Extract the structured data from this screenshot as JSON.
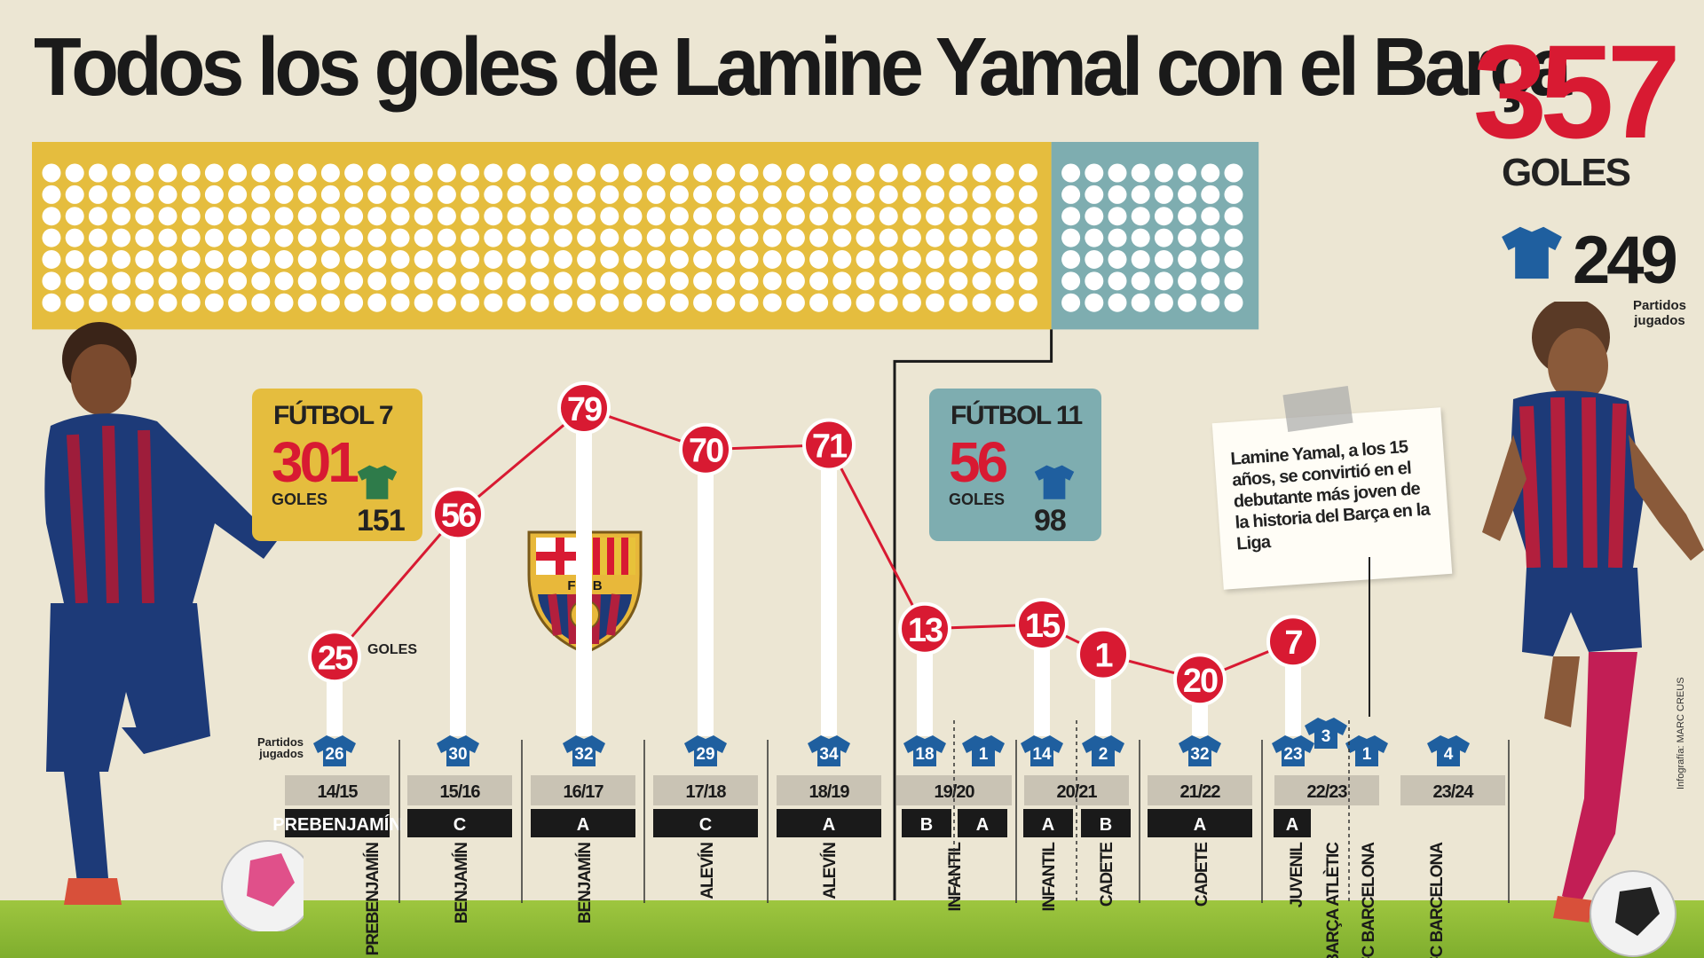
{
  "header": {
    "title": "Todos los goles de Lamine Yamal con el Barça",
    "total_goals": "357",
    "total_goals_label": "GOLES",
    "total_matches": "249",
    "total_matches_label": "Partidos jugados"
  },
  "colors": {
    "red": "#d81a32",
    "yellow": "#e5bd3e",
    "teal": "#7eadb0",
    "shirt_blue": "#1f5f9f",
    "shirt_green": "#2e7b4a"
  },
  "futbol7": {
    "title": "FÚTBOL 7",
    "goals": "301",
    "goals_label": "GOLES",
    "matches": "151"
  },
  "futbol11": {
    "title": "FÚTBOL 11",
    "goals": "56",
    "goals_label": "GOLES",
    "matches": "98"
  },
  "note": {
    "text": "Lamine Yamal, a los 15 años, se convirtió en el debutante más joven de la historia del Barça en la Liga"
  },
  "labels": {
    "goles": "GOLES",
    "partidos_jugados": "Partidos jugados"
  },
  "credit": "Infografía: MARC CREUS",
  "chart_data": {
    "type": "line",
    "title": "Todos los goles de Lamine Yamal con el Barça",
    "ylabel": "GOLES",
    "seasons": [
      "14/15",
      "15/16",
      "16/17",
      "17/18",
      "18/19",
      "19/20",
      "20/21",
      "21/22",
      "22/23",
      "23/24"
    ],
    "goals_series": [
      {
        "goals": 25,
        "matches": 26,
        "category": "PREBENJAMÍN",
        "letter": "PREBENJAMÍN",
        "season": "14/15"
      },
      {
        "goals": 56,
        "matches": 30,
        "category": "BENJAMÍN",
        "letter": "C",
        "season": "15/16"
      },
      {
        "goals": 79,
        "matches": 32,
        "category": "BENJAMÍN",
        "letter": "A",
        "season": "16/17"
      },
      {
        "goals": 70,
        "matches": 29,
        "category": "ALEVÍN",
        "letter": "C",
        "season": "17/18"
      },
      {
        "goals": 71,
        "matches": 34,
        "category": "ALEVÍN",
        "letter": "A",
        "season": "18/19"
      },
      {
        "goals": 13,
        "matches": 18,
        "category": "INFANTIL",
        "letter": "B",
        "season": "19/20"
      },
      {
        "goals": 15,
        "matches": 14,
        "category": "INFANTIL",
        "letter": "A",
        "season": "20/21"
      },
      {
        "goals": 1,
        "matches": 2,
        "category": "CADETE",
        "letter": "B",
        "season": "20/21"
      },
      {
        "goals": 20,
        "matches": 32,
        "category": "CADETE",
        "letter": "A",
        "season": "21/22"
      },
      {
        "goals": 7,
        "matches": 23,
        "category": "JUVENIL",
        "letter": "A",
        "season": "22/23"
      }
    ],
    "extra_matches": [
      {
        "matches": 1,
        "letter": "A",
        "season": "19/20"
      },
      {
        "matches": 3,
        "category": "BARÇA ATLÈTIC",
        "season": "22/23"
      },
      {
        "matches": 1,
        "category": "FC BARCELONA",
        "season": "22/23"
      },
      {
        "matches": 4,
        "category": "FC BARCELONA",
        "season": "23/24"
      }
    ],
    "dot_grid": {
      "total_goals": 357,
      "futbol7_goals": 301,
      "futbol11_goals": 56
    }
  }
}
